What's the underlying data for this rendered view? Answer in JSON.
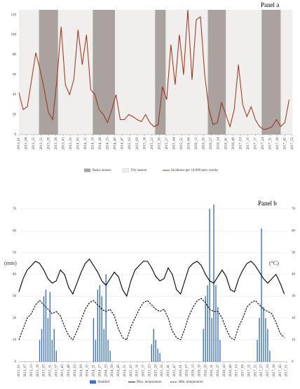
{
  "chart_data": [
    {
      "type": "line",
      "title": "Panel a",
      "xlim": [
        0,
        259
      ],
      "xticks": [
        {
          "value": 0,
          "label": "2013_01"
        },
        {
          "value": 7,
          "label": "2013_08"
        },
        {
          "value": 14,
          "label": "2013_15"
        },
        {
          "value": 21,
          "label": "2013_22"
        },
        {
          "value": 28,
          "label": "2013_29"
        },
        {
          "value": 35,
          "label": "2013_36"
        },
        {
          "value": 42,
          "label": "2013_43"
        },
        {
          "value": 49,
          "label": "2013_50"
        },
        {
          "value": 56,
          "label": "2014_05"
        },
        {
          "value": 63,
          "label": "2014_12"
        },
        {
          "value": 70,
          "label": "2014_19"
        },
        {
          "value": 77,
          "label": "2014_26"
        },
        {
          "value": 84,
          "label": "2014_33"
        },
        {
          "value": 91,
          "label": "2014_40"
        },
        {
          "value": 98,
          "label": "2014_47"
        },
        {
          "value": 105,
          "label": "2015_02"
        },
        {
          "value": 112,
          "label": "2015_09"
        },
        {
          "value": 119,
          "label": "2015_16"
        },
        {
          "value": 126,
          "label": "2015_23"
        },
        {
          "value": 133,
          "label": "2015_30"
        },
        {
          "value": 140,
          "label": "2015_37"
        },
        {
          "value": 147,
          "label": "2015_44"
        },
        {
          "value": 154,
          "label": "2015_51"
        },
        {
          "value": 161,
          "label": "2016_06"
        },
        {
          "value": 168,
          "label": "2016_13"
        },
        {
          "value": 175,
          "label": "2016_20"
        },
        {
          "value": 182,
          "label": "2016_27"
        },
        {
          "value": 189,
          "label": "2016_34"
        },
        {
          "value": 196,
          "label": "2016_41"
        },
        {
          "value": 203,
          "label": "2016_48"
        },
        {
          "value": 210,
          "label": "2017_03"
        },
        {
          "value": 217,
          "label": "2017_10"
        },
        {
          "value": 224,
          "label": "2017_17"
        },
        {
          "value": 231,
          "label": "2017_24"
        },
        {
          "value": 238,
          "label": "2017_31"
        },
        {
          "value": 245,
          "label": "2017_38"
        },
        {
          "value": 252,
          "label": "2017_45"
        },
        {
          "value": 259,
          "label": "2017_52"
        }
      ],
      "ylim": [
        0,
        125
      ],
      "yticks": [
        0,
        20,
        40,
        60,
        80,
        100,
        120
      ],
      "seasons": {
        "rainy": {
          "name": "Rainy season",
          "color": "#a9a29e",
          "ranges": [
            [
              19,
              37
            ],
            [
              70,
              91
            ],
            [
              129,
              139
            ],
            [
              179,
              196
            ],
            [
              230,
              248
            ]
          ]
        },
        "dry": {
          "name": "Dry season",
          "color": "#f1eeee"
        }
      },
      "series": [
        {
          "name": "Incidence per 10,000 pers.-weeks",
          "color": "#9a2e10",
          "x": [
            0,
            4,
            8,
            12,
            16,
            20,
            24,
            28,
            32,
            36,
            40,
            44,
            48,
            52,
            56,
            60,
            64,
            68,
            72,
            76,
            80,
            84,
            88,
            92,
            96,
            100,
            104,
            108,
            112,
            116,
            120,
            124,
            128,
            132,
            136,
            140,
            144,
            148,
            152,
            156,
            160,
            164,
            168,
            172,
            176,
            180,
            184,
            188,
            192,
            196,
            200,
            204,
            208,
            212,
            216,
            220,
            224,
            228,
            232,
            236,
            240,
            244,
            248,
            252,
            256
          ],
          "values": [
            42,
            25,
            28,
            55,
            82,
            65,
            45,
            22,
            15,
            55,
            108,
            50,
            40,
            55,
            105,
            70,
            100,
            45,
            40,
            25,
            20,
            12,
            25,
            40,
            15,
            15,
            20,
            18,
            15,
            13,
            20,
            12,
            8,
            10,
            48,
            35,
            90,
            50,
            100,
            60,
            125,
            55,
            115,
            118,
            60,
            25,
            10,
            12,
            32,
            20,
            8,
            25,
            70,
            30,
            18,
            28,
            15,
            8,
            5,
            6,
            8,
            15,
            8,
            12,
            35
          ]
        }
      ]
    },
    {
      "type": "combo",
      "title": "Panel b",
      "ylabel": "(mm)",
      "y2label": "(°C)",
      "xlim": [
        0,
        259
      ],
      "xticks": [
        {
          "value": 0,
          "label": "2013_01"
        },
        {
          "value": 6,
          "label": "2013_07"
        },
        {
          "value": 12,
          "label": "2013_13"
        },
        {
          "value": 18,
          "label": "2013_19"
        },
        {
          "value": 24,
          "label": "2013_25"
        },
        {
          "value": 30,
          "label": "2013_31"
        },
        {
          "value": 36,
          "label": "2013_37"
        },
        {
          "value": 42,
          "label": "2013_43"
        },
        {
          "value": 48,
          "label": "2013_49"
        },
        {
          "value": 54,
          "label": "2014_03"
        },
        {
          "value": 60,
          "label": "2014_09"
        },
        {
          "value": 66,
          "label": "2014_15"
        },
        {
          "value": 72,
          "label": "2014_21"
        },
        {
          "value": 78,
          "label": "2014_27"
        },
        {
          "value": 84,
          "label": "2014_33"
        },
        {
          "value": 90,
          "label": "2014_39"
        },
        {
          "value": 96,
          "label": "2014_45"
        },
        {
          "value": 102,
          "label": "2014_51"
        },
        {
          "value": 108,
          "label": "2015_05"
        },
        {
          "value": 114,
          "label": "2015_11"
        },
        {
          "value": 120,
          "label": "2015_17"
        },
        {
          "value": 126,
          "label": "2015_23"
        },
        {
          "value": 132,
          "label": "2015_29"
        },
        {
          "value": 138,
          "label": "2015_35"
        },
        {
          "value": 144,
          "label": "2015_41"
        },
        {
          "value": 150,
          "label": "2015_47"
        },
        {
          "value": 156,
          "label": "2016_01"
        },
        {
          "value": 162,
          "label": "2016_07"
        },
        {
          "value": 168,
          "label": "2016_13"
        },
        {
          "value": 174,
          "label": "2016_19"
        },
        {
          "value": 180,
          "label": "2016_25"
        },
        {
          "value": 186,
          "label": "2016_31"
        },
        {
          "value": 192,
          "label": "2016_37"
        },
        {
          "value": 198,
          "label": "2016_43"
        },
        {
          "value": 204,
          "label": "2016_49"
        },
        {
          "value": 210,
          "label": "2017_03"
        },
        {
          "value": 216,
          "label": "2017_09"
        },
        {
          "value": 222,
          "label": "2017_15"
        },
        {
          "value": 228,
          "label": "2017_21"
        },
        {
          "value": 234,
          "label": "2017_27"
        },
        {
          "value": 240,
          "label": "2017_33"
        },
        {
          "value": 246,
          "label": "2017_39"
        },
        {
          "value": 252,
          "label": "2017_45"
        },
        {
          "value": 258,
          "label": "2017_51"
        }
      ],
      "ylim": [
        0,
        70
      ],
      "yticks": [
        0,
        10,
        20,
        30,
        40,
        50,
        60,
        70
      ],
      "y2lim": [
        0,
        70
      ],
      "y2ticks": [
        0,
        10,
        20,
        30,
        40,
        50,
        60,
        70
      ],
      "series": [
        {
          "name": "Rainfall",
          "type": "bar",
          "color": "#3f6fc4",
          "x": [
            20,
            22,
            24,
            26,
            28,
            30,
            32,
            34,
            36,
            72,
            74,
            76,
            78,
            80,
            82,
            84,
            86,
            88,
            128,
            130,
            132,
            134,
            136,
            178,
            180,
            182,
            184,
            186,
            188,
            190,
            192,
            194,
            230,
            232,
            234,
            236,
            238,
            240,
            242
          ],
          "values": [
            10,
            15,
            30,
            33,
            20,
            32,
            10,
            15,
            5,
            20,
            10,
            33,
            35,
            30,
            15,
            40,
            10,
            5,
            8,
            15,
            10,
            6,
            4,
            15,
            30,
            35,
            70,
            20,
            72,
            35,
            25,
            10,
            10,
            20,
            61,
            25,
            20,
            15,
            5
          ]
        },
        {
          "name": "Max. temperature",
          "type": "line",
          "axis": "y2",
          "color": "#000000",
          "dash": false,
          "x": [
            0,
            4,
            8,
            12,
            16,
            20,
            24,
            28,
            32,
            36,
            40,
            44,
            48,
            52,
            56,
            60,
            64,
            68,
            72,
            76,
            80,
            84,
            88,
            92,
            96,
            100,
            104,
            108,
            112,
            116,
            120,
            124,
            128,
            132,
            136,
            140,
            144,
            148,
            152,
            156,
            160,
            164,
            168,
            172,
            176,
            180,
            184,
            188,
            192,
            196,
            200,
            204,
            208,
            212,
            216,
            220,
            224,
            228,
            232,
            236,
            240,
            244,
            248,
            252,
            256
          ],
          "values": [
            32,
            38,
            42,
            44,
            46,
            45,
            42,
            38,
            36,
            37,
            42,
            40,
            34,
            31,
            36,
            41,
            45,
            47,
            44,
            41,
            37,
            35,
            38,
            41,
            39,
            33,
            30,
            37,
            42,
            44,
            46,
            46,
            43,
            39,
            37,
            38,
            43,
            40,
            33,
            31,
            37,
            43,
            45,
            46,
            44,
            40,
            37,
            36,
            39,
            42,
            39,
            33,
            32,
            38,
            42,
            45,
            46,
            44,
            41,
            38,
            36,
            38,
            40,
            36,
            31
          ]
        },
        {
          "name": "Min. temperature",
          "type": "line",
          "axis": "y2",
          "color": "#000000",
          "dash": true,
          "x": [
            0,
            4,
            8,
            12,
            16,
            20,
            24,
            28,
            32,
            36,
            40,
            44,
            48,
            52,
            56,
            60,
            64,
            68,
            72,
            76,
            80,
            84,
            88,
            92,
            96,
            100,
            104,
            108,
            112,
            116,
            120,
            124,
            128,
            132,
            136,
            140,
            144,
            148,
            152,
            156,
            160,
            164,
            168,
            172,
            176,
            180,
            184,
            188,
            192,
            196,
            200,
            204,
            208,
            212,
            216,
            220,
            224,
            228,
            232,
            236,
            240,
            244,
            248,
            252,
            256
          ],
          "values": [
            10,
            15,
            20,
            22,
            26,
            28,
            26,
            24,
            22,
            23,
            21,
            16,
            12,
            10,
            14,
            19,
            24,
            27,
            28,
            26,
            24,
            23,
            24,
            21,
            15,
            11,
            10,
            16,
            20,
            24,
            27,
            28,
            26,
            24,
            23,
            24,
            20,
            14,
            11,
            10,
            15,
            21,
            25,
            28,
            29,
            27,
            24,
            23,
            23,
            20,
            15,
            11,
            10,
            16,
            20,
            25,
            27,
            28,
            26,
            24,
            23,
            22,
            18,
            13,
            11
          ]
        }
      ]
    }
  ]
}
